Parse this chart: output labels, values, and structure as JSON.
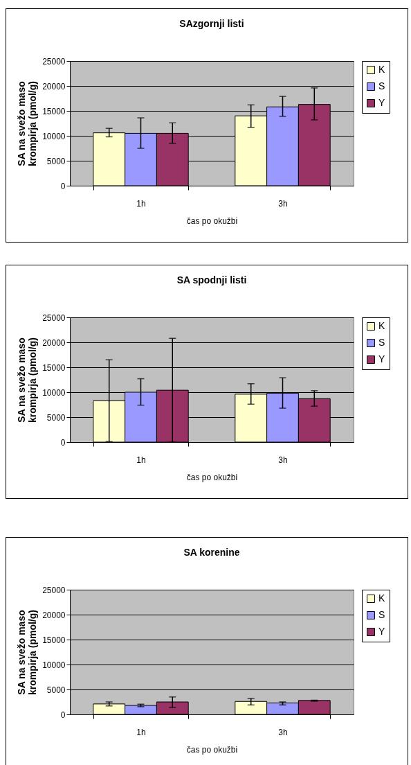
{
  "chart_data": [
    {
      "type": "bar",
      "title": "SAzgornji listi",
      "xlabel": "čas po okužbi",
      "ylabel": "SA na svežo maso krompirja (pmol/g)",
      "categories": [
        "1h",
        "3h"
      ],
      "series": [
        {
          "name": "K",
          "color": "#ffffcc",
          "values": [
            10600,
            14000
          ],
          "errors": [
            [
              9800,
              11500
            ],
            [
              11700,
              16200
            ]
          ]
        },
        {
          "name": "S",
          "color": "#9999ff",
          "values": [
            10500,
            15800
          ],
          "errors": [
            [
              7500,
              13600
            ],
            [
              13900,
              17900
            ]
          ]
        },
        {
          "name": "Y",
          "color": "#993366",
          "values": [
            10500,
            16300
          ],
          "errors": [
            [
              8500,
              12600
            ],
            [
              13200,
              19600
            ]
          ]
        }
      ],
      "ylim": [
        0,
        25000
      ],
      "yticks": [
        0,
        5000,
        10000,
        15000,
        20000,
        25000
      ],
      "grid": "y",
      "legend": "right"
    },
    {
      "type": "bar",
      "title": "SA spodnji listi",
      "xlabel": "čas po okužbi",
      "ylabel": "SA na svežo maso krompirja (pmol/g)",
      "categories": [
        "1h",
        "3h"
      ],
      "series": [
        {
          "name": "K",
          "color": "#ffffcc",
          "values": [
            8300,
            9600
          ],
          "errors": [
            [
              100,
              16500
            ],
            [
              7600,
              11700
            ]
          ]
        },
        {
          "name": "S",
          "color": "#9999ff",
          "values": [
            10000,
            9800
          ],
          "errors": [
            [
              7400,
              12700
            ],
            [
              6800,
              12900
            ]
          ]
        },
        {
          "name": "Y",
          "color": "#993366",
          "values": [
            10400,
            8700
          ],
          "errors": [
            [
              0,
              20800
            ],
            [
              7200,
              10300
            ]
          ]
        }
      ],
      "ylim": [
        0,
        25000
      ],
      "yticks": [
        0,
        5000,
        10000,
        15000,
        20000,
        25000
      ],
      "grid": "y",
      "legend": "right"
    },
    {
      "type": "bar",
      "title": "SA korenine",
      "xlabel": "čas po okužbi",
      "ylabel": "SA na svežo maso krompirja (pmol/g)",
      "categories": [
        "1h",
        "3h"
      ],
      "series": [
        {
          "name": "K",
          "color": "#ffffcc",
          "values": [
            2100,
            2600
          ],
          "errors": [
            [
              1700,
              2500
            ],
            [
              1900,
              3200
            ]
          ]
        },
        {
          "name": "S",
          "color": "#9999ff",
          "values": [
            1800,
            2300
          ],
          "errors": [
            [
              1550,
              2050
            ],
            [
              1900,
              2500
            ]
          ]
        },
        {
          "name": "Y",
          "color": "#993366",
          "values": [
            2500,
            2800
          ],
          "errors": [
            [
              1400,
              3500
            ],
            [
              2650,
              2850
            ]
          ]
        }
      ],
      "ylim": [
        0,
        25000
      ],
      "yticks": [
        0,
        5000,
        10000,
        15000,
        20000,
        25000
      ],
      "grid": "y",
      "legend": "right"
    }
  ]
}
